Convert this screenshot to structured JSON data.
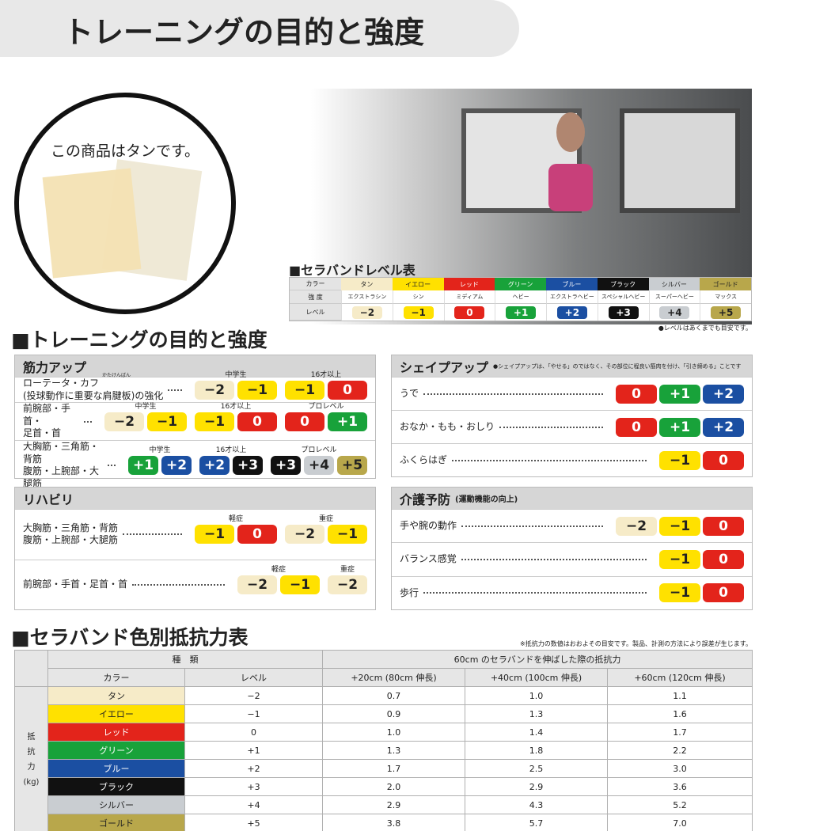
{
  "header": {
    "title": "トレーニングの目的と強度"
  },
  "product": {
    "caption": "この商品はタンです。"
  },
  "level_table": {
    "title": "■セラバンドレベル表",
    "row_labels": [
      "カラー",
      "強 度",
      "レベル"
    ],
    "note": "●レベルはあくまでも目安です。",
    "columns": [
      {
        "color": "タン",
        "strength": "エクストラシン",
        "level": "−2",
        "swatch": "#f6ebc8"
      },
      {
        "color": "イエロー",
        "strength": "シン",
        "level": "−1",
        "swatch": "#ffe100"
      },
      {
        "color": "レッド",
        "strength": "ミディアム",
        "level": "0",
        "swatch": "#e3241b"
      },
      {
        "color": "グリーン",
        "strength": "ヘビー",
        "level": "+1",
        "swatch": "#18a23a"
      },
      {
        "color": "ブルー",
        "strength": "エクストラヘビー",
        "level": "+2",
        "swatch": "#1b4fa2"
      },
      {
        "color": "ブラック",
        "strength": "スペシャルヘビー",
        "level": "+3",
        "swatch": "#111111"
      },
      {
        "color": "シルバー",
        "strength": "スーパーヘビー",
        "level": "+4",
        "swatch": "#c9cdd1"
      },
      {
        "color": "ゴールド",
        "strength": "マックス",
        "level": "+5",
        "swatch": "#b8a74b"
      }
    ]
  },
  "section_title": "■トレーニングの目的と強度",
  "panels": [
    {
      "title": "筋力アップ",
      "rows": [
        {
          "label": "ローテータ・カフ\n(投球動作に重要な肩腱板)の強化",
          "ruby": "かたけんばん",
          "groups": [
            {
              "label": "中学生",
              "levels": [
                "−2",
                "−1"
              ]
            },
            {
              "label": "16才以上",
              "levels": [
                "−1",
                "0"
              ]
            }
          ]
        },
        {
          "label": "前腕部・手首・\n足首・首",
          "groups": [
            {
              "label": "中学生",
              "levels": [
                "−2",
                "−1"
              ]
            },
            {
              "label": "16才以上",
              "levels": [
                "−1",
                "0"
              ]
            },
            {
              "label": "プロレベル",
              "levels": [
                "0",
                "+1"
              ]
            }
          ]
        },
        {
          "label": "大胸筋・三角筋・背筋\n腹筋・上腕部・大腿筋",
          "groups": [
            {
              "label": "中学生",
              "levels": [
                "+1",
                "+2"
              ]
            },
            {
              "label": "16才以上",
              "levels": [
                "+2",
                "+3"
              ]
            },
            {
              "label": "プロレベル",
              "levels": [
                "+3",
                "+4",
                "+5"
              ]
            }
          ]
        }
      ]
    },
    {
      "title": "リハビリ",
      "rows": [
        {
          "label": "大胸筋・三角筋・背筋\n腹筋・上腕部・大腿筋",
          "groups": [
            {
              "label": "軽症",
              "levels": [
                "−1",
                "0"
              ]
            },
            {
              "label": "重症",
              "levels": [
                "−2",
                "−1"
              ]
            }
          ]
        },
        {
          "label": "前腕部・手首・足首・首",
          "groups": [
            {
              "label": "軽症",
              "levels": [
                "−2",
                "−1"
              ]
            },
            {
              "label": "重症",
              "levels": [
                "−2"
              ]
            }
          ]
        }
      ]
    },
    {
      "title": "シェイプアップ",
      "note": "●シェイプアップは、「やせる」のではなく、その部位に程良い筋肉を付け、「引き締める」ことです",
      "rows": [
        {
          "label": "うで",
          "groups": [
            {
              "levels": [
                "0",
                "+1",
                "+2"
              ]
            }
          ]
        },
        {
          "label": "おなか・もも・おしり",
          "groups": [
            {
              "levels": [
                "0",
                "+1",
                "+2"
              ]
            }
          ]
        },
        {
          "label": "ふくらはぎ",
          "groups": [
            {
              "levels": [
                "−1",
                "0"
              ]
            }
          ]
        }
      ]
    },
    {
      "title": "介護予防",
      "subtitle": "(運動機能の向上)",
      "rows": [
        {
          "label": "手や腕の動作",
          "groups": [
            {
              "levels": [
                "−2",
                "−1",
                "0"
              ]
            }
          ]
        },
        {
          "label": "バランス感覚",
          "groups": [
            {
              "levels": [
                "−1",
                "0"
              ]
            }
          ]
        },
        {
          "label": "歩行",
          "groups": [
            {
              "levels": [
                "−1",
                "0"
              ]
            }
          ]
        }
      ]
    }
  ],
  "resistance": {
    "title": "■セラバンド色別抵抗力表",
    "note": "※抵抗力の数値はおおよその目安です。製品、計測の方法により誤差が生じます。",
    "group_headers": [
      "種　類",
      "60cm のセラバンドを伸ばした際の抵抗力"
    ],
    "headers": [
      "カラー",
      "レベル",
      "+20cm (80cm 伸長)",
      "+40cm (100cm 伸長)",
      "+60cm (120cm 伸長)"
    ],
    "side_label": "抵\n抗\n力\n(kg)",
    "rows": [
      [
        "タン",
        "−2",
        "0.7",
        "1.0",
        "1.1"
      ],
      [
        "イエロー",
        "−1",
        "0.9",
        "1.3",
        "1.6"
      ],
      [
        "レッド",
        "0",
        "1.0",
        "1.4",
        "1.7"
      ],
      [
        "グリーン",
        "+1",
        "1.3",
        "1.8",
        "2.2"
      ],
      [
        "ブルー",
        "+2",
        "1.7",
        "2.5",
        "3.0"
      ],
      [
        "ブラック",
        "+3",
        "2.0",
        "2.9",
        "3.6"
      ],
      [
        "シルバー",
        "+4",
        "2.9",
        "4.3",
        "5.2"
      ],
      [
        "ゴールド",
        "+5",
        "3.8",
        "5.7",
        "7.0"
      ]
    ]
  }
}
